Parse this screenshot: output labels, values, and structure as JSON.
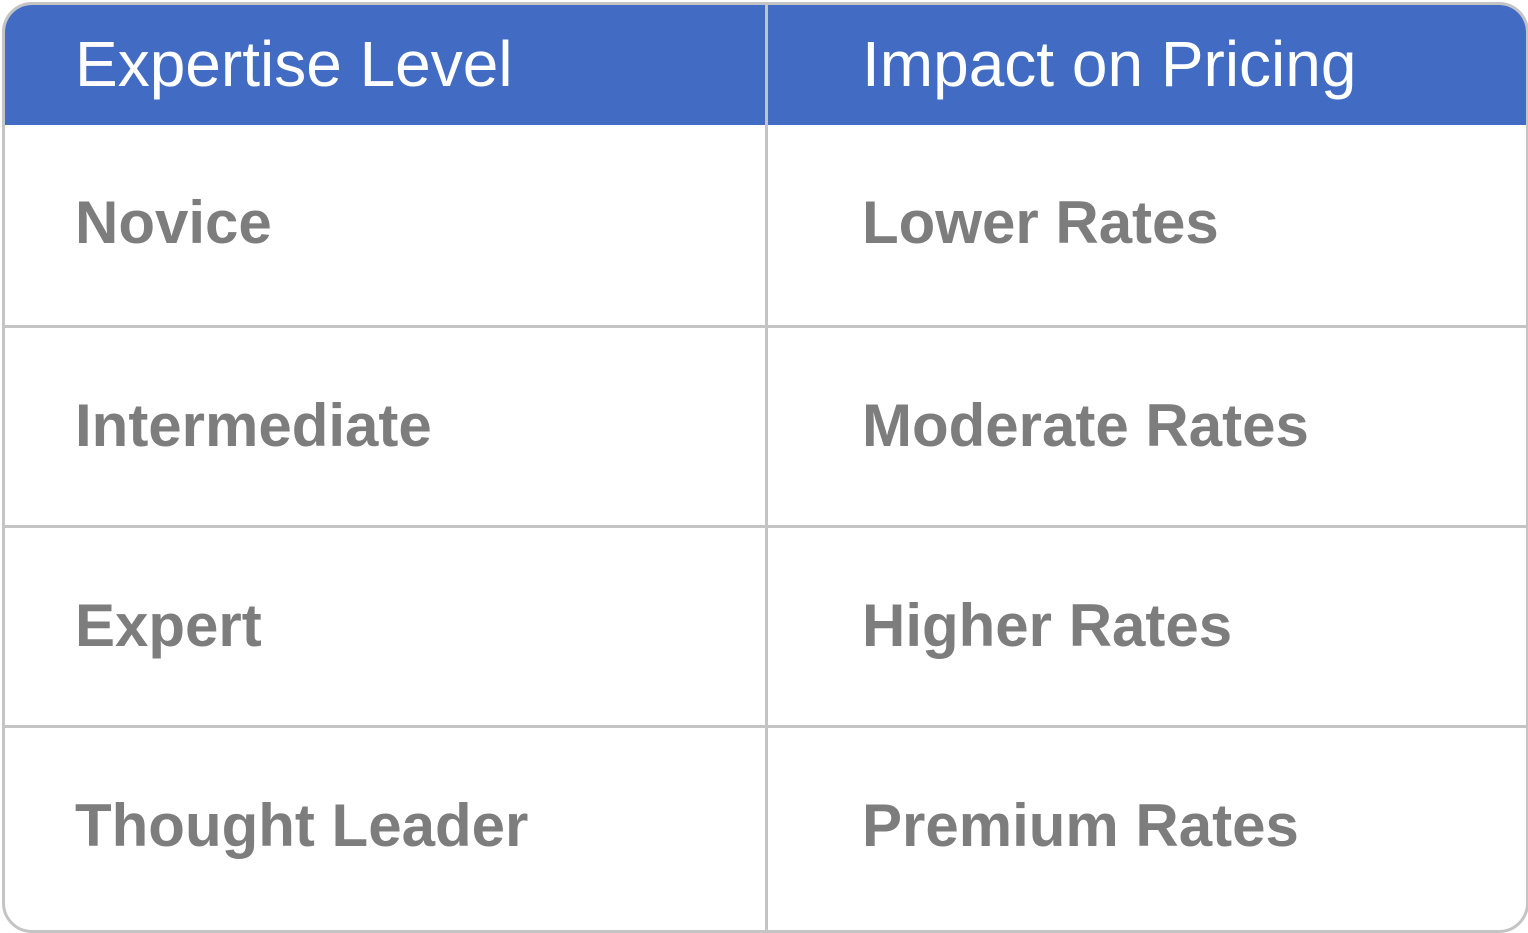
{
  "table": {
    "headers": [
      "Expertise Level",
      "Impact on Pricing"
    ],
    "rows": [
      [
        "Novice",
        "Lower Rates"
      ],
      [
        "Intermediate",
        "Moderate Rates"
      ],
      [
        "Expert",
        "Higher Rates"
      ],
      [
        "Thought Leader",
        "Premium Rates"
      ]
    ]
  },
  "colors": {
    "header_background": "#426cc3",
    "header_text": "#ffffff",
    "body_text": "#7d7d7d",
    "grid_lines": "#c4c4c4"
  }
}
